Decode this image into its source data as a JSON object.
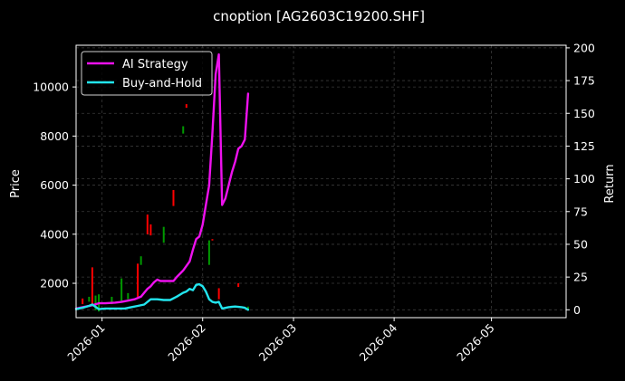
{
  "colors": {
    "background": "#000000",
    "text": "#ffffff",
    "grid": "#3a3a3a",
    "ai_strategy": "#ee11ee",
    "buy_and_hold": "#22e5ee",
    "candle_up": "#ff0000",
    "candle_down": "#009900"
  },
  "chart_data": {
    "type": "line",
    "title": "cnoption [AG2603C19200.SHF]",
    "ylabel": "Price",
    "y2label": "Return",
    "ylim": [
      600,
      11700
    ],
    "y2lim": [
      -6,
      202
    ],
    "xlim": [
      "2025-12-24",
      "2026-05-24"
    ],
    "x_ticks": [
      "2026-01",
      "2026-02",
      "2026-03",
      "2026-04",
      "2026-05"
    ],
    "x_tick_dates": [
      "2026-01-01",
      "2026-02-01",
      "2026-03-01",
      "2026-04-01",
      "2026-05-01"
    ],
    "y_ticks": [
      2000,
      4000,
      6000,
      8000,
      10000
    ],
    "y_tick_labels": [
      "2000",
      "4000",
      "6000",
      "8000",
      "10000"
    ],
    "y2_ticks": [
      0,
      25,
      50,
      75,
      100,
      125,
      150,
      175,
      200
    ],
    "y2_tick_labels": [
      "0",
      "25",
      "50",
      "75",
      "100",
      "125",
      "150",
      "175",
      "200"
    ],
    "grid": true,
    "legend_position": "upper-left",
    "series": [
      {
        "name": "AI Strategy",
        "axis": "right",
        "color": "#ee11ee",
        "points": [
          [
            "2025-12-24",
            1
          ],
          [
            "2025-12-26",
            2
          ],
          [
            "2025-12-29",
            3.5
          ],
          [
            "2025-12-31",
            5
          ],
          [
            "2026-01-02",
            5
          ],
          [
            "2026-01-05",
            5.5
          ],
          [
            "2026-01-07",
            6
          ],
          [
            "2026-01-09",
            7
          ],
          [
            "2026-01-11",
            8
          ],
          [
            "2026-01-13",
            10
          ],
          [
            "2026-01-14",
            13
          ],
          [
            "2026-01-15",
            16
          ],
          [
            "2026-01-16",
            18
          ],
          [
            "2026-01-17",
            21
          ],
          [
            "2026-01-18",
            23
          ],
          [
            "2026-01-19",
            22
          ],
          [
            "2026-01-21",
            22
          ],
          [
            "2026-01-23",
            22
          ],
          [
            "2026-01-24",
            25
          ],
          [
            "2026-01-26",
            30
          ],
          [
            "2026-01-28",
            37
          ],
          [
            "2026-01-29",
            46
          ],
          [
            "2026-01-30",
            54
          ],
          [
            "2026-01-31",
            56
          ],
          [
            "2026-02-01",
            65
          ],
          [
            "2026-02-02",
            80
          ],
          [
            "2026-02-03",
            95
          ],
          [
            "2026-02-04",
            135
          ],
          [
            "2026-02-05",
            180
          ],
          [
            "2026-02-06",
            195
          ],
          [
            "2026-02-07",
            80
          ],
          [
            "2026-02-08",
            85
          ],
          [
            "2026-02-10",
            105
          ],
          [
            "2026-02-11",
            113
          ],
          [
            "2026-02-12",
            123
          ],
          [
            "2026-02-13",
            125
          ],
          [
            "2026-02-14",
            130
          ],
          [
            "2026-02-15",
            165
          ]
        ]
      },
      {
        "name": "Buy-and-Hold",
        "axis": "right",
        "color": "#22e5ee",
        "points": [
          [
            "2025-12-24",
            0.5
          ],
          [
            "2025-12-26",
            1.5
          ],
          [
            "2025-12-28",
            3
          ],
          [
            "2025-12-29",
            4
          ],
          [
            "2025-12-31",
            0.5
          ],
          [
            "2026-01-02",
            1
          ],
          [
            "2026-01-05",
            1
          ],
          [
            "2026-01-08",
            1
          ],
          [
            "2026-01-10",
            2
          ],
          [
            "2026-01-12",
            3
          ],
          [
            "2026-01-14",
            4
          ],
          [
            "2026-01-16",
            8
          ],
          [
            "2026-01-18",
            8
          ],
          [
            "2026-01-20",
            7.5
          ],
          [
            "2026-01-22",
            7.5
          ],
          [
            "2026-01-24",
            10
          ],
          [
            "2026-01-26",
            13
          ],
          [
            "2026-01-27",
            14
          ],
          [
            "2026-01-28",
            16
          ],
          [
            "2026-01-29",
            15
          ],
          [
            "2026-01-30",
            19
          ],
          [
            "2026-01-31",
            19.5
          ],
          [
            "2026-02-01",
            18
          ],
          [
            "2026-02-02",
            14
          ],
          [
            "2026-02-03",
            8
          ],
          [
            "2026-02-04",
            6
          ],
          [
            "2026-02-05",
            5.5
          ],
          [
            "2026-02-06",
            6
          ],
          [
            "2026-02-07",
            1
          ],
          [
            "2026-02-09",
            2
          ],
          [
            "2026-02-11",
            2.5
          ],
          [
            "2026-02-13",
            2
          ],
          [
            "2026-02-14",
            1.5
          ],
          [
            "2026-02-15",
            0
          ]
        ]
      }
    ],
    "candles": [
      {
        "date": "2025-12-26",
        "low": 1150,
        "high": 1380,
        "dir": "up"
      },
      {
        "date": "2025-12-28",
        "low": 1250,
        "high": 1450,
        "dir": "down"
      },
      {
        "date": "2025-12-29",
        "low": 1100,
        "high": 2650,
        "dir": "up"
      },
      {
        "date": "2025-12-30",
        "low": 900,
        "high": 1500,
        "dir": "down"
      },
      {
        "date": "2025-12-31",
        "low": 850,
        "high": 1550,
        "dir": "down"
      },
      {
        "date": "2026-01-04",
        "low": 1150,
        "high": 1450,
        "dir": "down"
      },
      {
        "date": "2026-01-07",
        "low": 1250,
        "high": 2200,
        "dir": "down"
      },
      {
        "date": "2026-01-09",
        "low": 1350,
        "high": 1600,
        "dir": "down"
      },
      {
        "date": "2026-01-12",
        "low": 1450,
        "high": 2800,
        "dir": "up"
      },
      {
        "date": "2026-01-13",
        "low": 2750,
        "high": 3100,
        "dir": "down"
      },
      {
        "date": "2026-01-15",
        "low": 4000,
        "high": 4800,
        "dir": "up"
      },
      {
        "date": "2026-01-16",
        "low": 3950,
        "high": 4400,
        "dir": "up"
      },
      {
        "date": "2026-01-20",
        "low": 3650,
        "high": 4300,
        "dir": "down"
      },
      {
        "date": "2026-01-23",
        "low": 5150,
        "high": 5800,
        "dir": "up"
      },
      {
        "date": "2026-01-26",
        "low": 8100,
        "high": 8400,
        "dir": "down"
      },
      {
        "date": "2026-01-27",
        "low": 9150,
        "high": 9300,
        "dir": "up"
      },
      {
        "date": "2026-02-03",
        "low": 2750,
        "high": 3750,
        "dir": "down"
      },
      {
        "date": "2026-02-04",
        "low": 3750,
        "high": 3800,
        "dir": "up"
      },
      {
        "date": "2026-02-06",
        "low": 1350,
        "high": 1800,
        "dir": "up"
      },
      {
        "date": "2026-02-12",
        "low": 1850,
        "high": 2000,
        "dir": "up"
      },
      {
        "date": "2026-02-15",
        "low": 950,
        "high": 1050,
        "dir": "down"
      }
    ]
  }
}
